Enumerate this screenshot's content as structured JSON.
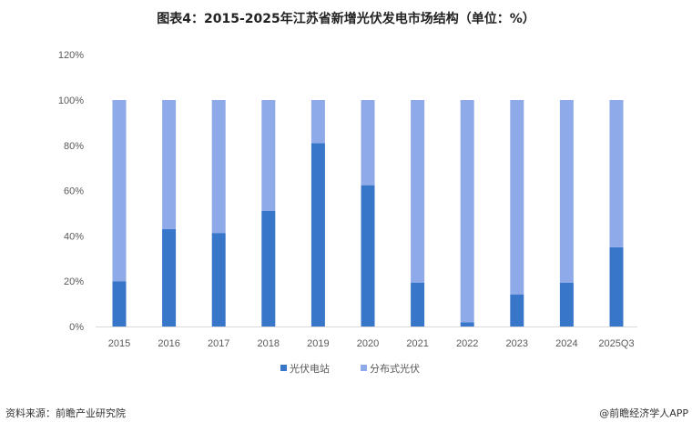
{
  "title": "图表4：2015-2025年江苏省新增光伏发电市场结构（单位：%）",
  "source": "资料来源：前瞻产业研究院",
  "brand": "@前瞻经济学人APP",
  "watermark": "前瞻产业研究院",
  "chart_data": {
    "type": "bar",
    "stacked": true,
    "categories": [
      "2015",
      "2016",
      "2017",
      "2018",
      "2019",
      "2020",
      "2021",
      "2022",
      "2023",
      "2024",
      "2025Q3"
    ],
    "series": [
      {
        "name": "光伏电站",
        "color": "#3876C9",
        "values": [
          20,
          43,
          41.3,
          51,
          81,
          62.4,
          19.4,
          1.9,
          14.2,
          19.4,
          35
        ]
      },
      {
        "name": "分布式光伏",
        "color": "#8EAAE8",
        "values": [
          80,
          57,
          58.7,
          49,
          19,
          37.6,
          80.6,
          98.1,
          85.8,
          80.6,
          65
        ]
      }
    ],
    "ylim": [
      0,
      120
    ],
    "yticks": [
      "0%",
      "20%",
      "40%",
      "60%",
      "80%",
      "100%",
      "120%"
    ],
    "grid": false,
    "legend_position": "bottom"
  }
}
